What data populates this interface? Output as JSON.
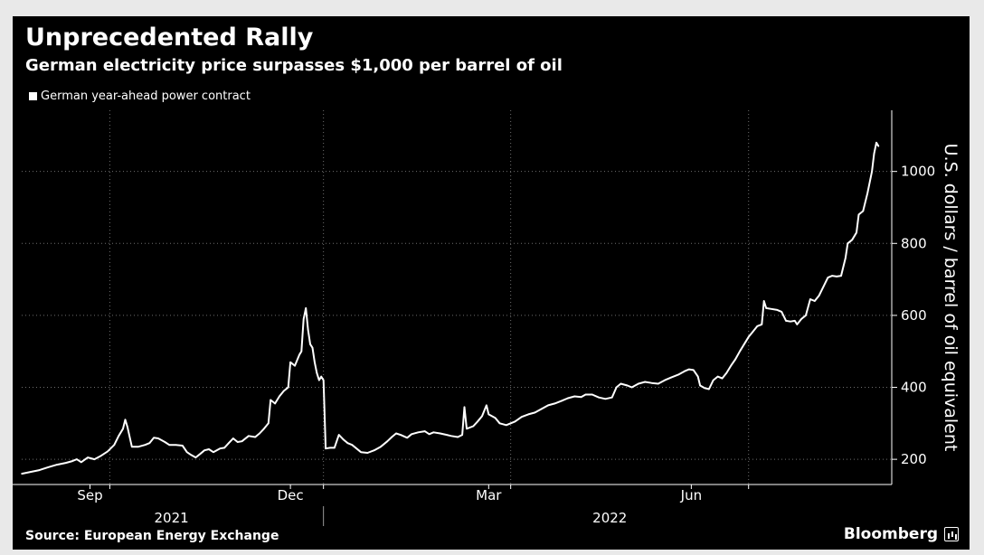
{
  "header": {
    "title": "Unprecedented Rally",
    "subtitle": "German electricity price surpasses $1,000 per barrel of oil"
  },
  "footer": {
    "source": "Source: European Energy Exchange",
    "brand": "Bloomberg"
  },
  "colors": {
    "background": "#000000",
    "line": "#ffffff",
    "grid": "#6e6e6e",
    "text": "#ffffff"
  },
  "chart_data": {
    "type": "line",
    "title": "Unprecedented Rally",
    "subtitle": "German electricity price surpasses $1,000 per barrel of oil",
    "ylabel": "U.S. dollars / barrel of oil equivalent",
    "xlabel": "",
    "ylim": [
      130,
      1170
    ],
    "yticks": [
      200,
      400,
      600,
      800,
      1000
    ],
    "xlim": [
      0,
      395
    ],
    "x_unit": "days since 2021-08-01",
    "xticks": [
      {
        "label": "Sep",
        "x": 31
      },
      {
        "label": "Dec",
        "x": 122
      },
      {
        "label": "Mar",
        "x": 212
      },
      {
        "label": "Jun",
        "x": 304
      }
    ],
    "x_month_gridlines": [
      40,
      137,
      222,
      330
    ],
    "year_labels": [
      {
        "label": "2021",
        "x": 68
      },
      {
        "label": "2022",
        "x": 267
      }
    ],
    "year_divider_x": 137,
    "legend": [
      "German year-ahead power contract"
    ],
    "legend_position": "top-left",
    "series": [
      {
        "name": "German year-ahead power contract",
        "points": [
          [
            0,
            160
          ],
          [
            4,
            165
          ],
          [
            8,
            170
          ],
          [
            12,
            178
          ],
          [
            16,
            185
          ],
          [
            20,
            190
          ],
          [
            23,
            195
          ],
          [
            25,
            200
          ],
          [
            27,
            192
          ],
          [
            30,
            205
          ],
          [
            33,
            200
          ],
          [
            36,
            210
          ],
          [
            39,
            222
          ],
          [
            42,
            240
          ],
          [
            44,
            265
          ],
          [
            46,
            285
          ],
          [
            47,
            310
          ],
          [
            48,
            290
          ],
          [
            50,
            235
          ],
          [
            53,
            235
          ],
          [
            56,
            240
          ],
          [
            58,
            245
          ],
          [
            60,
            260
          ],
          [
            62,
            258
          ],
          [
            65,
            248
          ],
          [
            67,
            240
          ],
          [
            70,
            240
          ],
          [
            73,
            238
          ],
          [
            75,
            220
          ],
          [
            77,
            212
          ],
          [
            79,
            205
          ],
          [
            81,
            215
          ],
          [
            83,
            225
          ],
          [
            85,
            228
          ],
          [
            87,
            220
          ],
          [
            90,
            230
          ],
          [
            92,
            232
          ],
          [
            94,
            245
          ],
          [
            96,
            258
          ],
          [
            98,
            248
          ],
          [
            100,
            250
          ],
          [
            103,
            265
          ],
          [
            106,
            262
          ],
          [
            108,
            272
          ],
          [
            110,
            285
          ],
          [
            112,
            300
          ],
          [
            113,
            365
          ],
          [
            115,
            355
          ],
          [
            117,
            375
          ],
          [
            119,
            390
          ],
          [
            121,
            400
          ],
          [
            122,
            470
          ],
          [
            124,
            460
          ],
          [
            126,
            490
          ],
          [
            127,
            500
          ],
          [
            128,
            590
          ],
          [
            129,
            620
          ],
          [
            130,
            560
          ],
          [
            131,
            520
          ],
          [
            132,
            510
          ],
          [
            133,
            470
          ],
          [
            134,
            440
          ],
          [
            135,
            420
          ],
          [
            136,
            430
          ],
          [
            137,
            420
          ],
          [
            138,
            230
          ],
          [
            140,
            232
          ],
          [
            142,
            232
          ],
          [
            144,
            268
          ],
          [
            146,
            255
          ],
          [
            148,
            245
          ],
          [
            150,
            240
          ],
          [
            152,
            230
          ],
          [
            154,
            220
          ],
          [
            157,
            218
          ],
          [
            160,
            225
          ],
          [
            163,
            235
          ],
          [
            166,
            250
          ],
          [
            168,
            262
          ],
          [
            170,
            272
          ],
          [
            172,
            268
          ],
          [
            175,
            260
          ],
          [
            177,
            270
          ],
          [
            180,
            275
          ],
          [
            183,
            278
          ],
          [
            185,
            270
          ],
          [
            187,
            275
          ],
          [
            190,
            272
          ],
          [
            193,
            268
          ],
          [
            195,
            265
          ],
          [
            198,
            262
          ],
          [
            200,
            268
          ],
          [
            201,
            345
          ],
          [
            202,
            285
          ],
          [
            205,
            292
          ],
          [
            207,
            305
          ],
          [
            209,
            320
          ],
          [
            211,
            350
          ],
          [
            212,
            325
          ],
          [
            215,
            315
          ],
          [
            217,
            300
          ],
          [
            220,
            295
          ],
          [
            222,
            300
          ],
          [
            224,
            305
          ],
          [
            227,
            318
          ],
          [
            230,
            325
          ],
          [
            233,
            330
          ],
          [
            236,
            340
          ],
          [
            239,
            350
          ],
          [
            242,
            355
          ],
          [
            245,
            362
          ],
          [
            248,
            370
          ],
          [
            251,
            375
          ],
          [
            254,
            373
          ],
          [
            256,
            380
          ],
          [
            259,
            380
          ],
          [
            262,
            372
          ],
          [
            265,
            368
          ],
          [
            268,
            372
          ],
          [
            270,
            400
          ],
          [
            272,
            410
          ],
          [
            275,
            405
          ],
          [
            277,
            400
          ],
          [
            280,
            410
          ],
          [
            283,
            415
          ],
          [
            286,
            412
          ],
          [
            289,
            410
          ],
          [
            292,
            420
          ],
          [
            295,
            428
          ],
          [
            298,
            435
          ],
          [
            301,
            445
          ],
          [
            303,
            450
          ],
          [
            305,
            448
          ],
          [
            307,
            430
          ],
          [
            308,
            405
          ],
          [
            310,
            398
          ],
          [
            312,
            395
          ],
          [
            314,
            420
          ],
          [
            316,
            430
          ],
          [
            318,
            425
          ],
          [
            320,
            440
          ],
          [
            322,
            460
          ],
          [
            324,
            478
          ],
          [
            326,
            500
          ],
          [
            328,
            520
          ],
          [
            330,
            540
          ],
          [
            332,
            555
          ],
          [
            334,
            570
          ],
          [
            336,
            575
          ],
          [
            337,
            640
          ],
          [
            338,
            620
          ],
          [
            340,
            618
          ],
          [
            343,
            615
          ],
          [
            345,
            610
          ],
          [
            347,
            585
          ],
          [
            349,
            583
          ],
          [
            351,
            585
          ],
          [
            352,
            575
          ],
          [
            354,
            590
          ],
          [
            356,
            600
          ],
          [
            358,
            645
          ],
          [
            360,
            640
          ],
          [
            362,
            655
          ],
          [
            364,
            680
          ],
          [
            366,
            705
          ],
          [
            368,
            710
          ],
          [
            370,
            708
          ],
          [
            372,
            710
          ],
          [
            374,
            760
          ],
          [
            375,
            800
          ],
          [
            377,
            810
          ],
          [
            379,
            830
          ],
          [
            380,
            880
          ],
          [
            382,
            890
          ],
          [
            384,
            940
          ],
          [
            386,
            1000
          ],
          [
            387,
            1050
          ],
          [
            388,
            1080
          ],
          [
            389,
            1070
          ]
        ]
      }
    ]
  }
}
